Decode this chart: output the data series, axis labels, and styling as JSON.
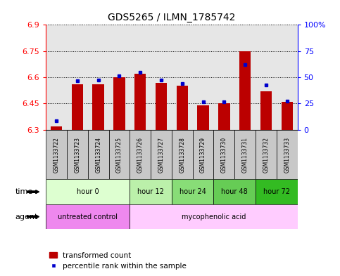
{
  "title": "GDS5265 / ILMN_1785742",
  "samples": [
    "GSM1133722",
    "GSM1133723",
    "GSM1133724",
    "GSM1133725",
    "GSM1133726",
    "GSM1133727",
    "GSM1133728",
    "GSM1133729",
    "GSM1133730",
    "GSM1133731",
    "GSM1133732",
    "GSM1133733"
  ],
  "red_values": [
    6.32,
    6.56,
    6.56,
    6.6,
    6.62,
    6.57,
    6.55,
    6.44,
    6.45,
    6.75,
    6.52,
    6.46
  ],
  "blue_values": [
    6.35,
    6.58,
    6.585,
    6.61,
    6.63,
    6.585,
    6.565,
    6.46,
    6.46,
    6.672,
    6.555,
    6.462
  ],
  "y_min": 6.3,
  "y_max": 6.9,
  "y_ticks": [
    6.3,
    6.45,
    6.6,
    6.75,
    6.9
  ],
  "right_y_ticks": [
    0,
    25,
    50,
    75,
    100
  ],
  "right_y_labels": [
    "0",
    "25",
    "50",
    "75",
    "100%"
  ],
  "time_groups": [
    {
      "label": "hour 0",
      "start": 0,
      "end": 3,
      "color": "#ddffd0"
    },
    {
      "label": "hour 12",
      "start": 4,
      "end": 5,
      "color": "#bbf0aa"
    },
    {
      "label": "hour 24",
      "start": 6,
      "end": 7,
      "color": "#88dd77"
    },
    {
      "label": "hour 48",
      "start": 8,
      "end": 9,
      "color": "#66cc55"
    },
    {
      "label": "hour 72",
      "start": 10,
      "end": 11,
      "color": "#33bb22"
    }
  ],
  "agent_groups": [
    {
      "label": "untreated control",
      "start": 0,
      "end": 3,
      "color": "#ee88ee"
    },
    {
      "label": "mycophenolic acid",
      "start": 4,
      "end": 11,
      "color": "#ffccff"
    }
  ],
  "red_color": "#bb0000",
  "blue_color": "#0000cc",
  "bar_width": 0.55,
  "sample_bg_color": "#c8c8c8",
  "plot_bg_color": "#ffffff"
}
